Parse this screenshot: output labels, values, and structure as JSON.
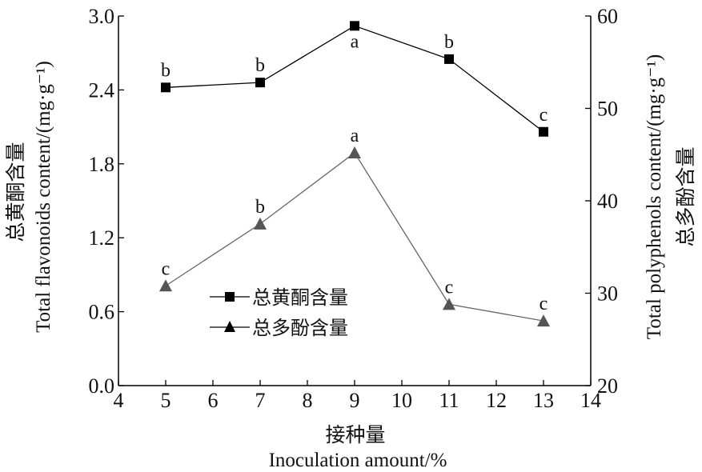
{
  "chart_data": {
    "type": "line",
    "x": [
      5,
      7,
      9,
      11,
      13
    ],
    "xlim": [
      4,
      14
    ],
    "x_ticks": [
      "4",
      "5",
      "6",
      "7",
      "8",
      "9",
      "10",
      "11",
      "12",
      "13",
      "14"
    ],
    "xlabel_cn": "接种量",
    "xlabel": "Inoculation amount/%",
    "y_left": {
      "label_cn": "总黄酮含量",
      "label": "Total flavonoids content/(mg·g⁻¹)",
      "lim": [
        0,
        3.0
      ],
      "ticks": [
        "0.0",
        "0.6",
        "1.2",
        "1.8",
        "2.4",
        "3.0"
      ]
    },
    "y_right": {
      "label_cn": "总多酚含量",
      "label": "Total polyphenols content/(mg·g⁻¹)",
      "lim": [
        20,
        60
      ],
      "ticks": [
        "20",
        "30",
        "40",
        "50",
        "60"
      ]
    },
    "series": [
      {
        "name": "总黄酮含量",
        "axis": "left",
        "marker": "square",
        "color": "#000000",
        "values": [
          2.42,
          2.46,
          2.92,
          2.65,
          2.06
        ],
        "labels": [
          "b",
          "b",
          "a",
          "b",
          "c"
        ]
      },
      {
        "name": "总多酚含量",
        "axis": "right",
        "marker": "triangle",
        "color": "#555555",
        "values": [
          30.8,
          37.5,
          45.2,
          28.8,
          27.0
        ],
        "labels": [
          "c",
          "b",
          "a",
          "c",
          "c"
        ]
      }
    ],
    "grid": false,
    "legend_position": "lower-left inside"
  }
}
